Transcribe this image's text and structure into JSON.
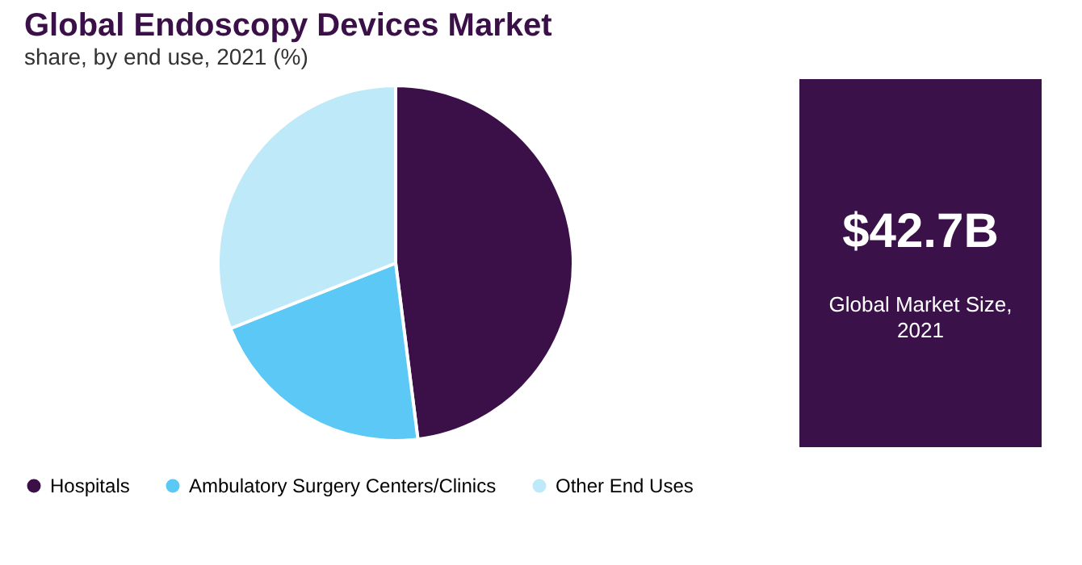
{
  "chart_data": {
    "type": "pie",
    "title": "Global Endoscopy Devices Market",
    "subtitle": "share, by end use, 2021 (%)",
    "categories": [
      "Hospitals",
      "Ambulatory Surgery Centers/Clinics",
      "Other End Uses"
    ],
    "values": [
      48,
      21,
      31
    ],
    "colors": [
      "#3b1048",
      "#5bc8f5",
      "#bde9f9"
    ],
    "legend": "bottom",
    "annotations": [
      "$42.7B",
      "Global Market Size, 2021"
    ]
  }
}
